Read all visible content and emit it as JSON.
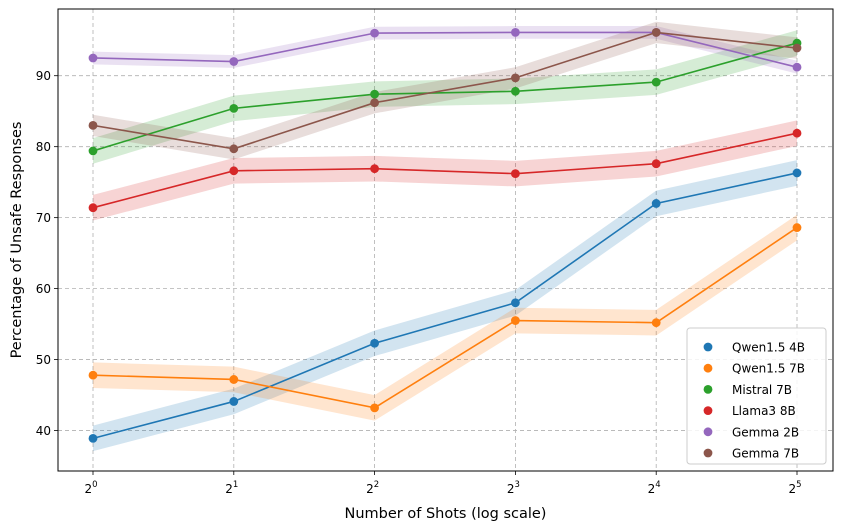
{
  "chart_data": {
    "type": "line",
    "x_log_base": 2,
    "x_exponents": [
      0,
      1,
      2,
      3,
      4,
      5
    ],
    "x": [
      1,
      2,
      4,
      8,
      16,
      32
    ],
    "xlabel": "Number of Shots (log scale)",
    "ylabel": "Percentage of Unsafe Responses",
    "ylim": [
      34.3,
      99.4
    ],
    "yticks": [
      40,
      50,
      60,
      70,
      80,
      90
    ],
    "grid": true,
    "legend_position": "lower-right",
    "series": [
      {
        "name": "Qwen1.5 4B",
        "color": "#1f77b4",
        "values": [
          38.9,
          44.1,
          52.3,
          58.0,
          72.0,
          76.3
        ],
        "band": 1.8
      },
      {
        "name": "Qwen1.5 7B",
        "color": "#ff7f0e",
        "values": [
          47.8,
          47.2,
          43.2,
          55.5,
          55.2,
          68.6
        ],
        "band": 1.8
      },
      {
        "name": "Mistral 7B",
        "color": "#2ca02c",
        "values": [
          79.4,
          85.4,
          87.4,
          87.8,
          89.1,
          94.6
        ],
        "band": 1.8
      },
      {
        "name": "Llama3 8B",
        "color": "#d62728",
        "values": [
          71.4,
          76.6,
          76.9,
          76.2,
          77.6,
          81.9
        ],
        "band": 1.8
      },
      {
        "name": "Gemma 2B",
        "color": "#9467bd",
        "values": [
          92.5,
          92.0,
          96.0,
          96.1,
          96.1,
          91.2
        ],
        "band": 0.9
      },
      {
        "name": "Gemma 7B",
        "color": "#8c564b",
        "values": [
          83.0,
          79.7,
          86.2,
          89.7,
          96.1,
          93.9
        ],
        "band": 1.5
      }
    ]
  }
}
